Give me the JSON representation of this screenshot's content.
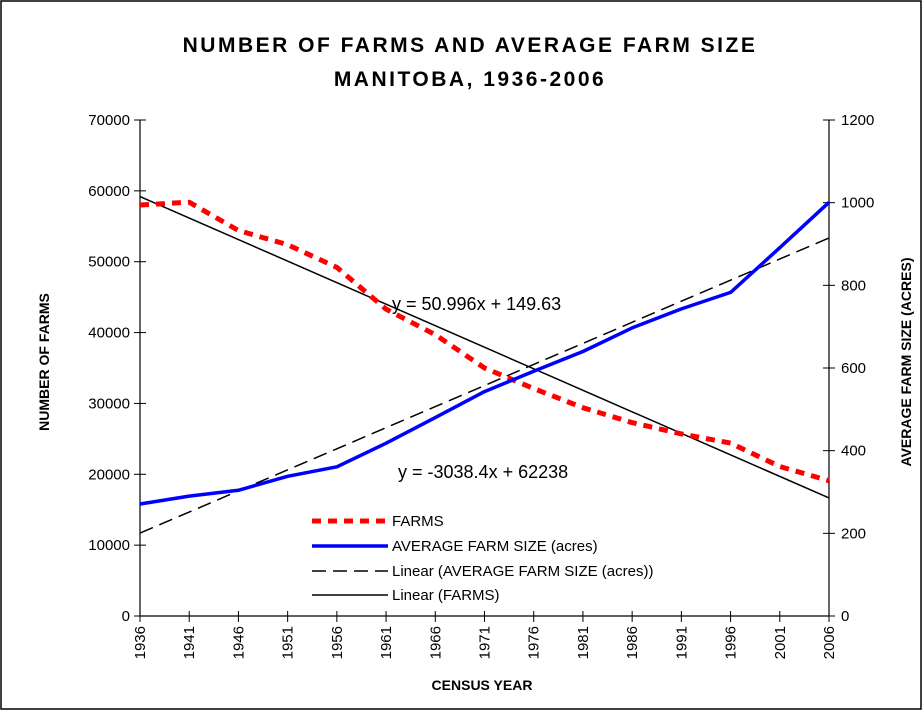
{
  "chart_data": {
    "type": "line",
    "title_line1": "NUMBER OF FARMS AND AVERAGE FARM SIZE",
    "title_line2": "MANITOBA, 1936-2006",
    "xlabel": "CENSUS YEAR",
    "ylabel_left": "NUMBER OF FARMS",
    "ylabel_right": "AVERAGE FARM SIZE (ACRES)",
    "x": [
      1936,
      1941,
      1946,
      1951,
      1956,
      1961,
      1966,
      1971,
      1976,
      1981,
      1986,
      1991,
      1996,
      2001,
      2006
    ],
    "x_tick_labels": [
      "1936",
      "1941",
      "1946",
      "1951",
      "1956",
      "1961",
      "1966",
      "1971",
      "1976",
      "1981",
      "1986",
      "1991",
      "1996",
      "2001",
      "2006"
    ],
    "ylim_left": [
      0,
      70000
    ],
    "ylim_right": [
      0,
      1200
    ],
    "y_left_ticks": [
      "0",
      "10000",
      "20000",
      "30000",
      "40000",
      "50000",
      "60000",
      "70000"
    ],
    "y_right_ticks": [
      "0",
      "200",
      "400",
      "600",
      "800",
      "1000",
      "1200"
    ],
    "series": [
      {
        "name": "FARMS",
        "axis": "left",
        "color": "#ff0000",
        "style": "dotted",
        "values": [
          58000,
          58400,
          54400,
          52400,
          49200,
          43300,
          39700,
          35000,
          32100,
          29400,
          27300,
          25700,
          24400,
          21100,
          19100
        ]
      },
      {
        "name": "AVERAGE FARM SIZE (acres)",
        "axis": "right",
        "color": "#0000ff",
        "style": "solid",
        "values": [
          271,
          290,
          304,
          338,
          361,
          418,
          480,
          543,
          592,
          640,
          697,
          743,
          783,
          891,
          1001
        ]
      }
    ],
    "trendlines": [
      {
        "name": "Linear (AVERAGE FARM SIZE (acres))",
        "axis": "right",
        "slope": 50.996,
        "intercept": 149.63,
        "equation": "y = 50.996x + 149.63",
        "style": "dashed",
        "color": "#000000"
      },
      {
        "name": "Linear (FARMS)",
        "axis": "left",
        "slope": -3038.4,
        "intercept": 62238,
        "equation": "y = -3038.4x + 62238",
        "style": "solid",
        "color": "#000000"
      }
    ],
    "legend_position": "bottom-center",
    "grid": false
  }
}
